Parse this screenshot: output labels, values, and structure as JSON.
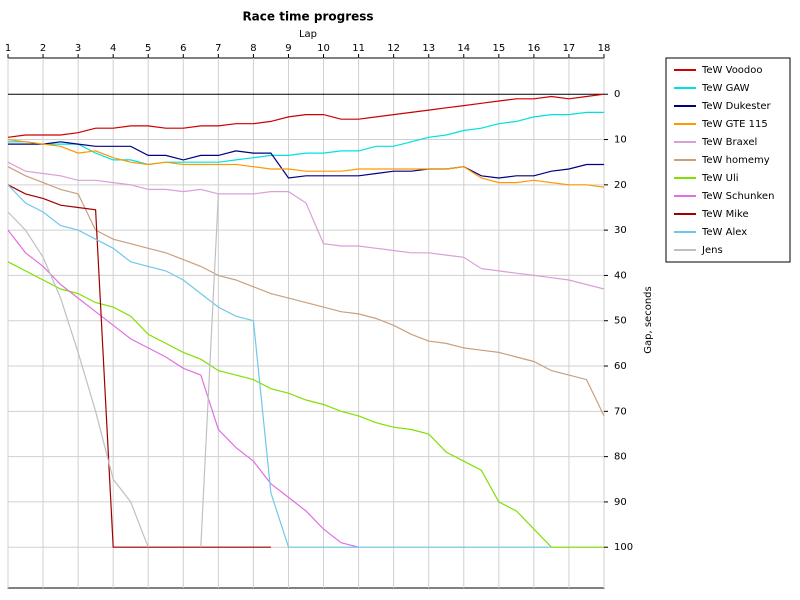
{
  "chart_data": {
    "type": "line",
    "title": "Race time progress",
    "x_label": "Lap",
    "y_label": "Gap, seconds",
    "x": [
      1,
      1.5,
      2,
      2.5,
      3,
      3.5,
      4,
      4.5,
      5,
      5.5,
      6,
      6.5,
      7,
      7.5,
      8,
      8.5,
      9,
      9.5,
      10,
      10.5,
      11,
      11.5,
      12,
      12.5,
      13,
      13.5,
      14,
      14.5,
      15,
      15.5,
      16,
      16.5,
      17,
      17.5,
      18
    ],
    "xlim": [
      1,
      18
    ],
    "xticks": [
      1,
      2,
      3,
      4,
      5,
      6,
      7,
      8,
      9,
      10,
      11,
      12,
      13,
      14,
      15,
      16,
      17,
      18
    ],
    "ylim": [
      -8,
      109
    ],
    "yticks": [
      0,
      10,
      20,
      30,
      40,
      50,
      60,
      70,
      80,
      90,
      100
    ],
    "y_reversed": true,
    "grid": true,
    "legend": "right",
    "series": [
      {
        "name": "TeW Voodoo",
        "color": "#cc0000",
        "values": [
          9.5,
          9,
          9,
          9,
          8.5,
          7.5,
          7.5,
          7,
          7,
          7.5,
          7.5,
          7,
          7,
          6.5,
          6.5,
          6,
          5,
          4.5,
          4.5,
          5.5,
          5.5,
          5,
          4.5,
          4,
          3.5,
          3,
          2.5,
          2,
          1.5,
          1,
          1,
          0.5,
          1,
          0.5,
          0
        ]
      },
      {
        "name": "TeW GAW",
        "color": "#00e0e0",
        "values": [
          10.5,
          10.5,
          11,
          11,
          11,
          13,
          14.5,
          14.5,
          15.5,
          15,
          15,
          15,
          15,
          14.5,
          14,
          13.5,
          13.5,
          13,
          13,
          12.5,
          12.5,
          11.5,
          11.5,
          10.5,
          9.5,
          9,
          8,
          7.5,
          6.5,
          6,
          5,
          4.5,
          4.5,
          4,
          4
        ]
      },
      {
        "name": "TeW Dukester",
        "color": "#000080",
        "values": [
          11,
          11,
          11,
          10.5,
          11,
          11.5,
          11.5,
          11.5,
          13.5,
          13.5,
          14.5,
          13.5,
          13.5,
          12.5,
          13,
          13,
          18.5,
          18,
          18,
          18,
          18,
          17.5,
          17,
          17,
          16.5,
          16.5,
          16,
          18,
          18.5,
          18,
          18,
          17,
          16.5,
          15.5,
          15.5
        ]
      },
      {
        "name": "TeW GTE 115",
        "color": "#ff9900",
        "values": [
          10,
          10.5,
          11,
          11.5,
          13,
          12.5,
          14,
          15,
          15.5,
          15,
          15.5,
          15.5,
          15.5,
          15.5,
          16,
          16.5,
          16.5,
          17,
          17,
          17,
          16.5,
          16.5,
          16.5,
          16.5,
          16.5,
          16.5,
          16,
          18.5,
          19.5,
          19.5,
          19,
          19.5,
          20,
          20,
          20.5
        ]
      },
      {
        "name": "TeW Braxel",
        "color": "#d8a0d8",
        "values": [
          15,
          17,
          17.5,
          18,
          19,
          19,
          19.5,
          20,
          21,
          21,
          21.5,
          21,
          22,
          22,
          22,
          21.5,
          21.5,
          24,
          33,
          33.5,
          33.5,
          34,
          34.5,
          35,
          35,
          35.5,
          36,
          38.5,
          39,
          39.5,
          40,
          40.5,
          41,
          42,
          43
        ]
      },
      {
        "name": "TeW homemy",
        "color": "#c8a080",
        "values": [
          16,
          18,
          19.5,
          21,
          22,
          30,
          32,
          33,
          34,
          35,
          36.5,
          38,
          40,
          41,
          42.5,
          44,
          45,
          46,
          47,
          48,
          48.5,
          49.5,
          51,
          53,
          54.5,
          55,
          56,
          56.5,
          57,
          58,
          59,
          61,
          62,
          63,
          71
        ]
      },
      {
        "name": "TeW  Uli",
        "color": "#80e000",
        "values": [
          37,
          39,
          41,
          43,
          44,
          46,
          47,
          49,
          53,
          55,
          57,
          58.5,
          61,
          62,
          63,
          65,
          66,
          67.5,
          68.5,
          70,
          71,
          72.5,
          73.5,
          74,
          75,
          79,
          81,
          83,
          90,
          92,
          96,
          100,
          100,
          100,
          100
        ]
      },
      {
        "name": "TeW Schunken",
        "color": "#e070e0",
        "values": [
          30,
          35,
          38,
          42,
          45,
          48,
          51,
          54,
          56,
          58,
          60.5,
          62,
          74,
          78,
          81,
          86,
          89,
          92,
          96,
          99,
          100,
          null,
          null,
          null,
          null,
          null,
          null,
          null,
          null,
          null,
          null,
          null,
          null,
          null,
          null
        ]
      },
      {
        "name": "TeW Mike",
        "color": "#a00000",
        "values": [
          20,
          22,
          23,
          24.5,
          25,
          25.5,
          100,
          100,
          100,
          100,
          100,
          100,
          100,
          100,
          100,
          100,
          null,
          null,
          null,
          null,
          null,
          null,
          null,
          null,
          null,
          null,
          null,
          null,
          null,
          null,
          null,
          null,
          null,
          null,
          null
        ]
      },
      {
        "name": "TeW Alex",
        "color": "#70c8e8",
        "values": [
          20,
          24,
          26,
          29,
          30,
          32,
          34,
          37,
          38,
          39,
          41,
          44,
          47,
          49,
          50,
          88,
          100,
          100,
          100,
          100,
          100,
          100,
          100,
          100,
          100,
          100,
          100,
          100,
          100,
          100,
          100,
          100,
          null,
          null,
          null
        ]
      },
      {
        "name": "Jens",
        "color": "#c0c0c0",
        "values": [
          26,
          30,
          36,
          45,
          57,
          70,
          85,
          90,
          100,
          null,
          null,
          100,
          22,
          null,
          null,
          null,
          null,
          null,
          null,
          null,
          null,
          null,
          null,
          null,
          null,
          null,
          null,
          null,
          null,
          null,
          null,
          null,
          null,
          null,
          null
        ]
      }
    ]
  }
}
